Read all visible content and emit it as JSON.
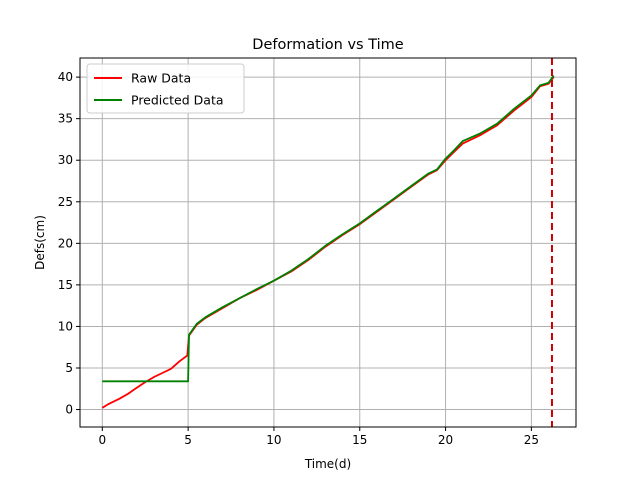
{
  "chart_data": {
    "type": "line",
    "title": "Deformation vs Time",
    "xlabel": "Time(d)",
    "ylabel": "Defs(cm)",
    "xlim": [
      -1.3,
      27.6
    ],
    "ylim": [
      -2.1,
      42.3
    ],
    "xticks": [
      0,
      5,
      10,
      15,
      20,
      25
    ],
    "yticks": [
      0,
      5,
      10,
      15,
      20,
      25,
      30,
      35,
      40
    ],
    "grid": true,
    "legend_position": "upper-left",
    "series": [
      {
        "name": "Raw Data",
        "color": "#ff0000",
        "points": [
          [
            0,
            0.2
          ],
          [
            0.3,
            0.6
          ],
          [
            0.6,
            0.9
          ],
          [
            1,
            1.3
          ],
          [
            1.5,
            1.9
          ],
          [
            2,
            2.6
          ],
          [
            2.5,
            3.3
          ],
          [
            3,
            3.9
          ],
          [
            3.5,
            4.4
          ],
          [
            4,
            4.9
          ],
          [
            4.5,
            5.8
          ],
          [
            4.95,
            6.5
          ],
          [
            5.05,
            8.9
          ],
          [
            5.5,
            10.2
          ],
          [
            6,
            11
          ],
          [
            7,
            12.2
          ],
          [
            8,
            13.4
          ],
          [
            9,
            14.4
          ],
          [
            10,
            15.5
          ],
          [
            11,
            16.6
          ],
          [
            12,
            18
          ],
          [
            13,
            19.6
          ],
          [
            14,
            21
          ],
          [
            15,
            22.3
          ],
          [
            16,
            23.8
          ],
          [
            17,
            25.3
          ],
          [
            18,
            26.8
          ],
          [
            19,
            28.3
          ],
          [
            19.5,
            28.8
          ],
          [
            20,
            30
          ],
          [
            20.5,
            31
          ],
          [
            21,
            32
          ],
          [
            22,
            33
          ],
          [
            23,
            34.2
          ],
          [
            24,
            36
          ],
          [
            25,
            37.6
          ],
          [
            25.5,
            38.9
          ],
          [
            26,
            39.2
          ],
          [
            26.3,
            40
          ]
        ]
      },
      {
        "name": "Predicted Data",
        "color": "#008000",
        "points": [
          [
            0,
            3.4
          ],
          [
            5,
            3.4
          ],
          [
            5,
            3.4
          ],
          [
            5.05,
            9
          ],
          [
            5.5,
            10.3
          ],
          [
            6,
            11.1
          ],
          [
            7,
            12.3
          ],
          [
            8,
            13.4
          ],
          [
            9,
            14.5
          ],
          [
            10,
            15.5
          ],
          [
            11,
            16.7
          ],
          [
            12,
            18.1
          ],
          [
            13,
            19.7
          ],
          [
            14,
            21.1
          ],
          [
            15,
            22.4
          ],
          [
            16,
            23.9
          ],
          [
            17,
            25.4
          ],
          [
            18,
            26.9
          ],
          [
            19,
            28.4
          ],
          [
            19.5,
            28.9
          ],
          [
            20,
            30.2
          ],
          [
            20.5,
            31.2
          ],
          [
            21,
            32.3
          ],
          [
            22,
            33.2
          ],
          [
            23,
            34.4
          ],
          [
            24,
            36.2
          ],
          [
            25,
            37.8
          ],
          [
            25.5,
            39
          ],
          [
            26,
            39.3
          ],
          [
            26.3,
            40.2
          ]
        ]
      }
    ],
    "vline": {
      "x": 26.2,
      "color": "#cc0000",
      "style": "dashed"
    }
  }
}
